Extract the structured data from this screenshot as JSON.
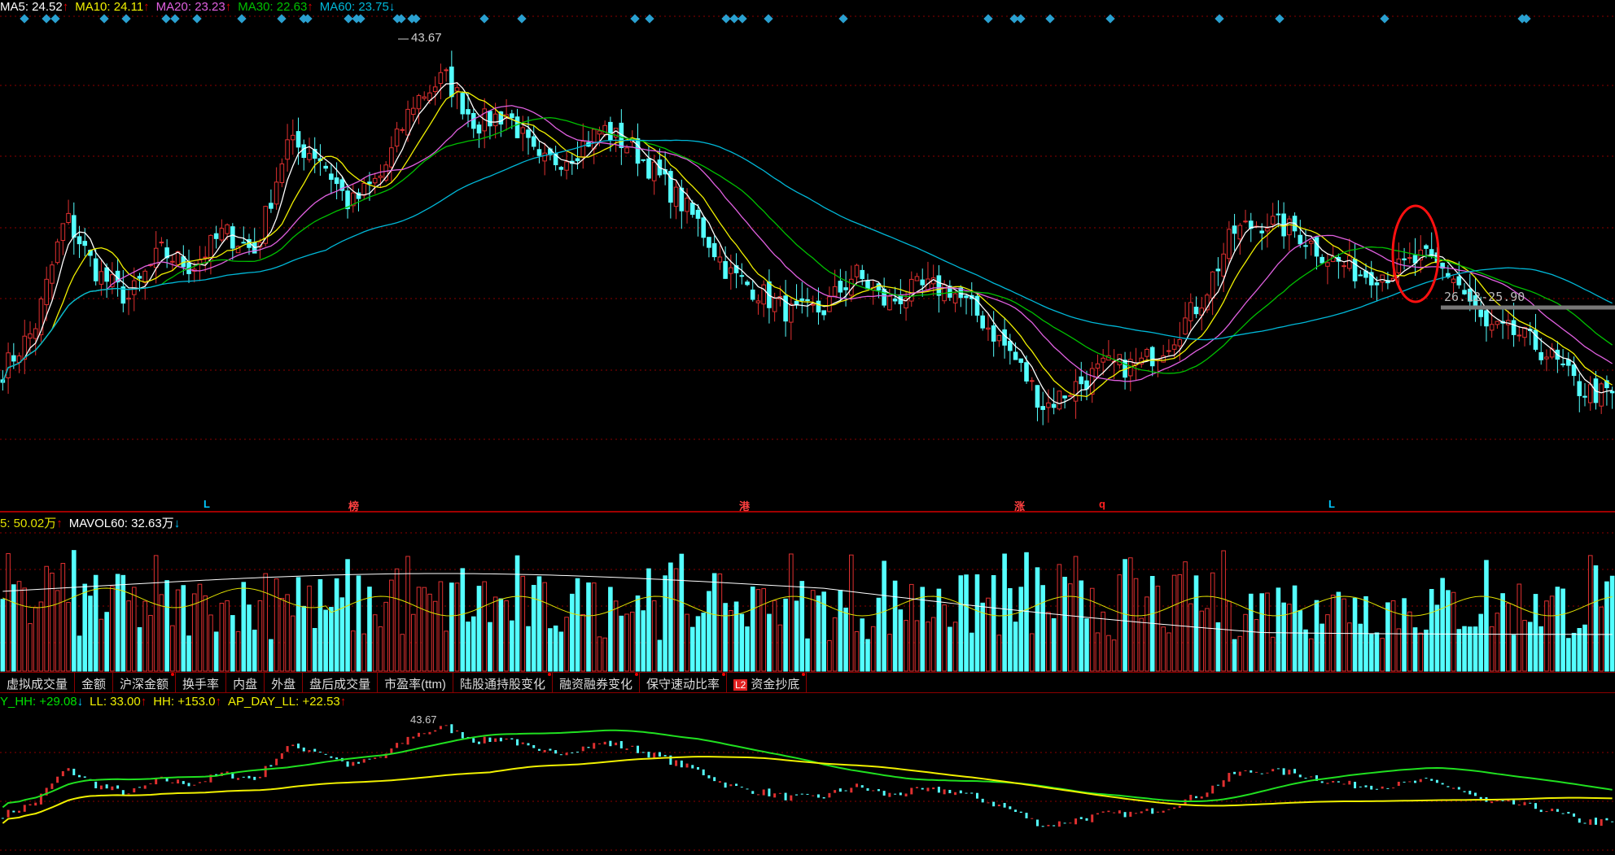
{
  "main_legend": [
    {
      "label": "MA5: 24.52",
      "arrow": "↑",
      "color": "#ffffff",
      "trend": "up"
    },
    {
      "label": "MA10: 24.11",
      "arrow": "↑",
      "color": "#f0f000",
      "trend": "up"
    },
    {
      "label": "MA20: 23.23",
      "arrow": "↑",
      "color": "#e060e0",
      "trend": "up"
    },
    {
      "label": "MA30: 22.63",
      "arrow": "↑",
      "color": "#00c000",
      "trend": "up"
    },
    {
      "label": "MA60: 23.75",
      "arrow": "↓",
      "color": "#00b8d8",
      "trend": "down"
    }
  ],
  "high_label": "43.67",
  "range_label": "26.12-25.90",
  "event_markers": [
    {
      "text": "L",
      "color": "#00c8ff"
    },
    {
      "text": "榜",
      "color": "#ff4040"
    },
    {
      "text": "港",
      "color": "#ff4040"
    },
    {
      "text": "涨",
      "color": "#ff4040"
    },
    {
      "text": "q",
      "color": "#ff2020"
    },
    {
      "text": "L",
      "color": "#00c8ff"
    }
  ],
  "volume_legend": [
    {
      "label": "5: 50.02万",
      "arrow": "↑",
      "color": "#e0e000",
      "trend": "up"
    },
    {
      "label": "MAVOL60: 32.63万",
      "arrow": "↓",
      "color": "#ffffff",
      "trend": "down"
    }
  ],
  "tabs": [
    {
      "label": "虚拟成交量",
      "dot": false
    },
    {
      "label": "金额",
      "dot": false
    },
    {
      "label": "沪深金额",
      "dot": true
    },
    {
      "label": "换手率",
      "dot": false
    },
    {
      "label": "内盘",
      "dot": false
    },
    {
      "label": "外盘",
      "dot": false
    },
    {
      "label": "盘后成交量",
      "dot": false
    },
    {
      "label": "市盈率(ttm)",
      "dot": false
    },
    {
      "label": "陆股通持股变化",
      "dot": true
    },
    {
      "label": "融资融券变化",
      "dot": true
    },
    {
      "label": "保守速动比率",
      "dot": true
    },
    {
      "label": "资金抄底",
      "dot": true,
      "badge": "L2"
    }
  ],
  "indicator_legend": [
    {
      "label": "Y_HH: +29.08",
      "arrow": "↓",
      "color": "#00e000",
      "trend": "down"
    },
    {
      "label": "LL: 33.00",
      "arrow": "↑",
      "color": "#f0f000",
      "trend": "up"
    },
    {
      "label": "HH: +153.0",
      "arrow": "↑",
      "color": "#f0f000",
      "trend": "up"
    },
    {
      "label": "AP_DAY_LL: +22.53",
      "arrow": "↑",
      "color": "#f0f000",
      "trend": "up"
    }
  ],
  "colors": {
    "up": "#e03030",
    "down": "#54ffff",
    "grid": "#8b0000",
    "highlight_ellipse": "#ff1010"
  },
  "chart_data": {
    "type": "candlestick",
    "close_price_path": [
      21.9,
      24.6,
      32.0,
      28.3,
      26.6,
      29.7,
      28.7,
      31.0,
      29.7,
      36.8,
      36.1,
      32.7,
      34.7,
      39.5,
      41.2,
      38.1,
      38.8,
      35.4,
      36.1,
      37.8,
      36.4,
      34.1,
      31.7,
      28.3,
      27.0,
      25.6,
      25.9,
      28.3,
      26.3,
      27.3,
      27.3,
      25.3,
      22.9,
      19.5,
      20.9,
      22.2,
      22.2,
      23.9,
      26.6,
      31.0,
      31.7,
      31.0,
      29.3,
      28.3,
      28.3,
      29.3,
      28.0,
      24.6,
      24.3,
      22.9,
      20.6,
      20.2
    ],
    "high": 43.67,
    "range_band": [
      26.12,
      25.9
    ]
  }
}
